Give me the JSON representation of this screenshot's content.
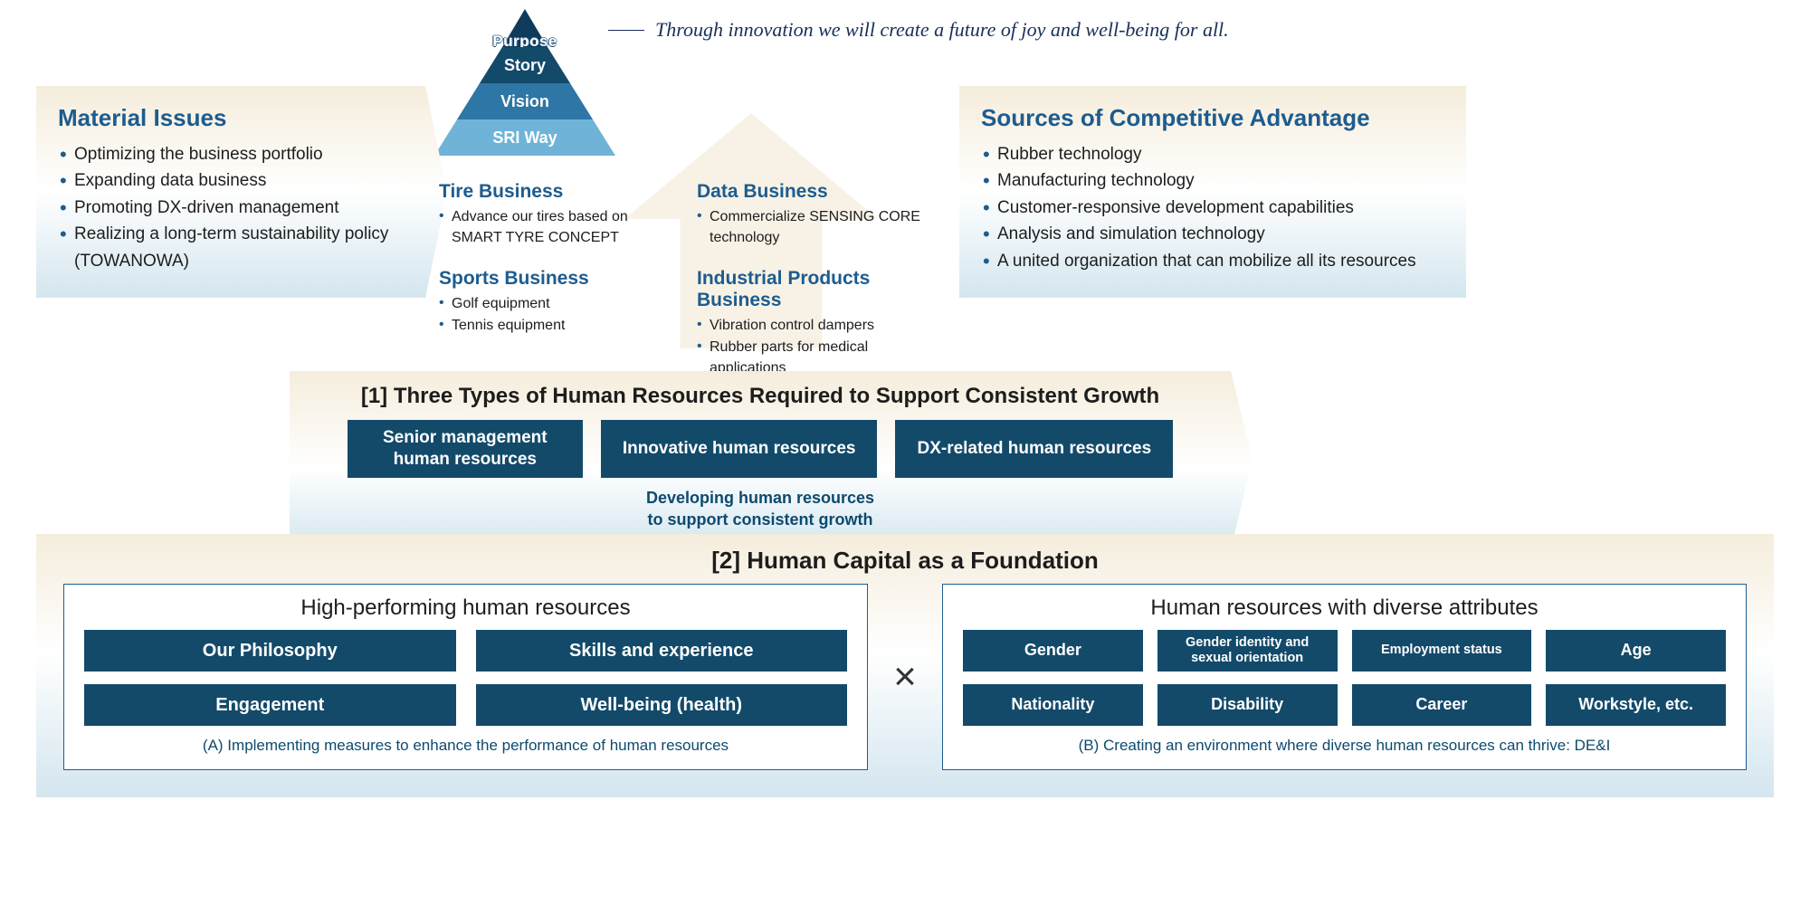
{
  "purpose": {
    "apex_label": "Purpose",
    "tagline": "Through innovation we will create a future of joy and well-being for all.",
    "layers": [
      "Story",
      "Vision",
      "SRI Way"
    ]
  },
  "material_issues": {
    "title": "Material Issues",
    "items": [
      "Optimizing the business portfolio",
      "Expanding data business",
      "Promoting DX-driven management",
      "Realizing a long-term sustainability policy (TOWANOWA)"
    ]
  },
  "competitive": {
    "title": "Sources of Competitive Advantage",
    "items": [
      "Rubber technology",
      "Manufacturing technology",
      "Customer-responsive development capabilities",
      "Analysis and simulation technology",
      "A united organization that can mobilize all its resources"
    ]
  },
  "businesses": [
    {
      "title": "Tire Business",
      "items": [
        "Advance our tires based on SMART TYRE CONCEPT"
      ]
    },
    {
      "title": "Data Business",
      "items": [
        "Commercialize SENSING CORE technology"
      ]
    },
    {
      "title": "Sports Business",
      "items": [
        "Golf equipment",
        "Tennis equipment"
      ]
    },
    {
      "title": "Industrial Products Business",
      "items": [
        "Vibration control dampers",
        "Rubber parts for medical applications"
      ]
    }
  ],
  "section1": {
    "title": "[1] Three Types of Human Resources Required to Support Consistent Growth",
    "pills": [
      "Senior management human resources",
      "Innovative human resources",
      "DX-related human resources"
    ],
    "sub": "Developing human resources\nto support consistent growth"
  },
  "section2": {
    "title": "[2] Human Capital as a Foundation",
    "left": {
      "title": "High-performing human resources",
      "tags": [
        "Our Philosophy",
        "Skills and experience",
        "Engagement",
        "Well-being (health)"
      ],
      "caption": "(A) Implementing measures to enhance the performance of human resources"
    },
    "right": {
      "title": "Human resources with diverse attributes",
      "tags": [
        "Gender",
        "Gender identity and sexual orientation",
        "Employment status",
        "Age",
        "Nationality",
        "Disability",
        "Career",
        "Workstyle, etc."
      ],
      "small_indices": [
        1,
        2
      ],
      "caption": "(B) Creating an environment where diverse human resources can thrive: DE&I"
    }
  },
  "colors": {
    "navy": "#0d4a6e",
    "title_blue": "#1d5c8f",
    "cream": "#f5eddc",
    "sky": "#d4e6ef",
    "box_dark": "#134a6a",
    "pyramid": [
      "#0f3a5a",
      "#134a6a",
      "#2d76a6",
      "#6fb4d8"
    ]
  }
}
